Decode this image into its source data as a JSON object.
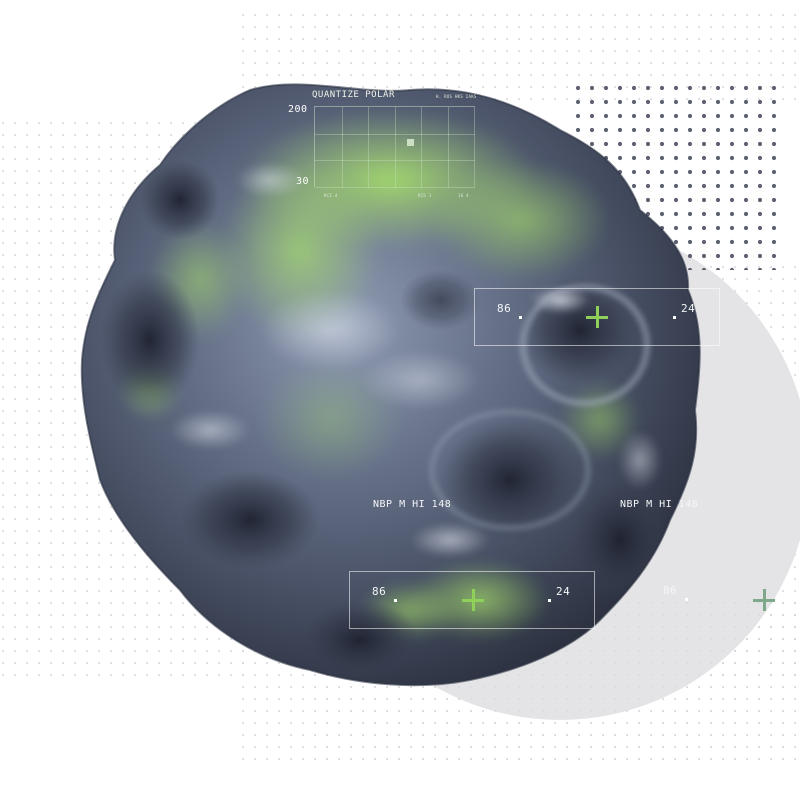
{
  "hud": {
    "quantize_title": "QUANTIZE POLAR",
    "axis_top": "200",
    "axis_bottom": "30",
    "meta_small": "H. ROS HKS IAKS",
    "grid_labels": [
      "RCI.4",
      "RIS 1",
      "16 4"
    ],
    "label_left": "NBP M HI 148",
    "label_right": "NBP M HI 148",
    "readout_upper_left": "86",
    "readout_upper_right": "24",
    "readout_lower_left": "86",
    "readout_lower_right": "24",
    "readout_outside": "86"
  },
  "colors": {
    "accent_green": "#8fd05a",
    "accent_muted_green": "#7fa88a",
    "blob_base": "#4a5266",
    "dot_grid": "#c9ccd2",
    "dense_dots": "#5d6170",
    "backdrop_circle": "#e4e4e6"
  }
}
